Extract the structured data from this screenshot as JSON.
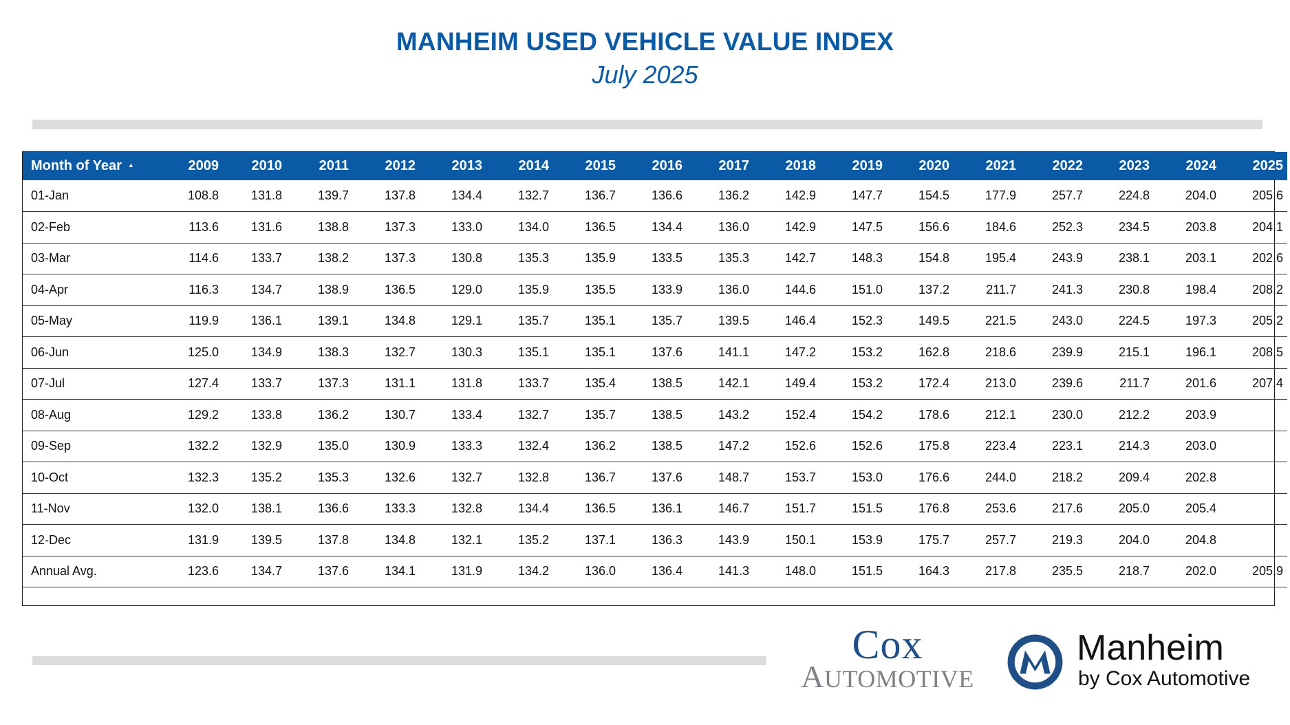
{
  "header": {
    "title": "MANHEIM USED VEHICLE VALUE INDEX",
    "subtitle": "July 2025"
  },
  "table": {
    "month_header": "Month of Year",
    "sort_icon": "sort-ascending-icon",
    "years": [
      "2009",
      "2010",
      "2011",
      "2012",
      "2013",
      "2014",
      "2015",
      "2016",
      "2017",
      "2018",
      "2019",
      "2020",
      "2021",
      "2022",
      "2023",
      "2024",
      "2025"
    ],
    "rows": [
      {
        "label": "01-Jan",
        "values": [
          "108.8",
          "131.8",
          "139.7",
          "137.8",
          "134.4",
          "132.7",
          "136.7",
          "136.6",
          "136.2",
          "142.9",
          "147.7",
          "154.5",
          "177.9",
          "257.7",
          "224.8",
          "204.0",
          "205.6"
        ]
      },
      {
        "label": "02-Feb",
        "values": [
          "113.6",
          "131.6",
          "138.8",
          "137.3",
          "133.0",
          "134.0",
          "136.5",
          "134.4",
          "136.0",
          "142.9",
          "147.5",
          "156.6",
          "184.6",
          "252.3",
          "234.5",
          "203.8",
          "204.1"
        ]
      },
      {
        "label": "03-Mar",
        "values": [
          "114.6",
          "133.7",
          "138.2",
          "137.3",
          "130.8",
          "135.3",
          "135.9",
          "133.5",
          "135.3",
          "142.7",
          "148.3",
          "154.8",
          "195.4",
          "243.9",
          "238.1",
          "203.1",
          "202.6"
        ]
      },
      {
        "label": "04-Apr",
        "values": [
          "116.3",
          "134.7",
          "138.9",
          "136.5",
          "129.0",
          "135.9",
          "135.5",
          "133.9",
          "136.0",
          "144.6",
          "151.0",
          "137.2",
          "211.7",
          "241.3",
          "230.8",
          "198.4",
          "208.2"
        ]
      },
      {
        "label": "05-May",
        "values": [
          "119.9",
          "136.1",
          "139.1",
          "134.8",
          "129.1",
          "135.7",
          "135.1",
          "135.7",
          "139.5",
          "146.4",
          "152.3",
          "149.5",
          "221.5",
          "243.0",
          "224.5",
          "197.3",
          "205.2"
        ]
      },
      {
        "label": "06-Jun",
        "values": [
          "125.0",
          "134.9",
          "138.3",
          "132.7",
          "130.3",
          "135.1",
          "135.1",
          "137.6",
          "141.1",
          "147.2",
          "153.2",
          "162.8",
          "218.6",
          "239.9",
          "215.1",
          "196.1",
          "208.5"
        ]
      },
      {
        "label": "07-Jul",
        "values": [
          "127.4",
          "133.7",
          "137.3",
          "131.1",
          "131.8",
          "133.7",
          "135.4",
          "138.5",
          "142.1",
          "149.4",
          "153.2",
          "172.4",
          "213.0",
          "239.6",
          "211.7",
          "201.6",
          "207.4"
        ]
      },
      {
        "label": "08-Aug",
        "values": [
          "129.2",
          "133.8",
          "136.2",
          "130.7",
          "133.4",
          "132.7",
          "135.7",
          "138.5",
          "143.2",
          "152.4",
          "154.2",
          "178.6",
          "212.1",
          "230.0",
          "212.2",
          "203.9",
          ""
        ]
      },
      {
        "label": "09-Sep",
        "values": [
          "132.2",
          "132.9",
          "135.0",
          "130.9",
          "133.3",
          "132.4",
          "136.2",
          "138.5",
          "147.2",
          "152.6",
          "152.6",
          "175.8",
          "223.4",
          "223.1",
          "214.3",
          "203.0",
          ""
        ]
      },
      {
        "label": "10-Oct",
        "values": [
          "132.3",
          "135.2",
          "135.3",
          "132.6",
          "132.7",
          "132.8",
          "136.7",
          "137.6",
          "148.7",
          "153.7",
          "153.0",
          "176.6",
          "244.0",
          "218.2",
          "209.4",
          "202.8",
          ""
        ]
      },
      {
        "label": "11-Nov",
        "values": [
          "132.0",
          "138.1",
          "136.6",
          "133.3",
          "132.8",
          "134.4",
          "136.5",
          "136.1",
          "146.7",
          "151.7",
          "151.5",
          "176.8",
          "253.6",
          "217.6",
          "205.0",
          "205.4",
          ""
        ]
      },
      {
        "label": "12-Dec",
        "values": [
          "131.9",
          "139.5",
          "137.8",
          "134.8",
          "132.1",
          "135.2",
          "137.1",
          "136.3",
          "143.9",
          "150.1",
          "153.9",
          "175.7",
          "257.7",
          "219.3",
          "204.0",
          "204.8",
          ""
        ]
      },
      {
        "label": "Annual Avg.",
        "values": [
          "123.6",
          "134.7",
          "137.6",
          "134.1",
          "131.9",
          "134.2",
          "136.0",
          "136.4",
          "141.3",
          "148.0",
          "151.5",
          "164.3",
          "217.8",
          "235.5",
          "218.7",
          "202.0",
          "205.9"
        ]
      }
    ]
  },
  "chart_data": {
    "type": "table",
    "title": "MANHEIM USED VEHICLE VALUE INDEX",
    "subtitle": "July 2025",
    "columns": [
      "Month of Year",
      "2009",
      "2010",
      "2011",
      "2012",
      "2013",
      "2014",
      "2015",
      "2016",
      "2017",
      "2018",
      "2019",
      "2020",
      "2021",
      "2022",
      "2023",
      "2024",
      "2025"
    ],
    "rows": [
      [
        "01-Jan",
        108.8,
        131.8,
        139.7,
        137.8,
        134.4,
        132.7,
        136.7,
        136.6,
        136.2,
        142.9,
        147.7,
        154.5,
        177.9,
        257.7,
        224.8,
        204.0,
        205.6
      ],
      [
        "02-Feb",
        113.6,
        131.6,
        138.8,
        137.3,
        133.0,
        134.0,
        136.5,
        134.4,
        136.0,
        142.9,
        147.5,
        156.6,
        184.6,
        252.3,
        234.5,
        203.8,
        204.1
      ],
      [
        "03-Mar",
        114.6,
        133.7,
        138.2,
        137.3,
        130.8,
        135.3,
        135.9,
        133.5,
        135.3,
        142.7,
        148.3,
        154.8,
        195.4,
        243.9,
        238.1,
        203.1,
        202.6
      ],
      [
        "04-Apr",
        116.3,
        134.7,
        138.9,
        136.5,
        129.0,
        135.9,
        135.5,
        133.9,
        136.0,
        144.6,
        151.0,
        137.2,
        211.7,
        241.3,
        230.8,
        198.4,
        208.2
      ],
      [
        "05-May",
        119.9,
        136.1,
        139.1,
        134.8,
        129.1,
        135.7,
        135.1,
        135.7,
        139.5,
        146.4,
        152.3,
        149.5,
        221.5,
        243.0,
        224.5,
        197.3,
        205.2
      ],
      [
        "06-Jun",
        125.0,
        134.9,
        138.3,
        132.7,
        130.3,
        135.1,
        135.1,
        137.6,
        141.1,
        147.2,
        153.2,
        162.8,
        218.6,
        239.9,
        215.1,
        196.1,
        208.5
      ],
      [
        "07-Jul",
        127.4,
        133.7,
        137.3,
        131.1,
        131.8,
        133.7,
        135.4,
        138.5,
        142.1,
        149.4,
        153.2,
        172.4,
        213.0,
        239.6,
        211.7,
        201.6,
        207.4
      ],
      [
        "08-Aug",
        129.2,
        133.8,
        136.2,
        130.7,
        133.4,
        132.7,
        135.7,
        138.5,
        143.2,
        152.4,
        154.2,
        178.6,
        212.1,
        230.0,
        212.2,
        203.9,
        null
      ],
      [
        "09-Sep",
        132.2,
        132.9,
        135.0,
        130.9,
        133.3,
        132.4,
        136.2,
        138.5,
        147.2,
        152.6,
        152.6,
        175.8,
        223.4,
        223.1,
        214.3,
        203.0,
        null
      ],
      [
        "10-Oct",
        132.3,
        135.2,
        135.3,
        132.6,
        132.7,
        132.8,
        136.7,
        137.6,
        148.7,
        153.7,
        153.0,
        176.6,
        244.0,
        218.2,
        209.4,
        202.8,
        null
      ],
      [
        "11-Nov",
        132.0,
        138.1,
        136.6,
        133.3,
        132.8,
        134.4,
        136.5,
        136.1,
        146.7,
        151.7,
        151.5,
        176.8,
        253.6,
        217.6,
        205.0,
        205.4,
        null
      ],
      [
        "12-Dec",
        131.9,
        139.5,
        137.8,
        134.8,
        132.1,
        135.2,
        137.1,
        136.3,
        143.9,
        150.1,
        153.9,
        175.7,
        257.7,
        219.3,
        204.0,
        204.8,
        null
      ],
      [
        "Annual Avg.",
        123.6,
        134.7,
        137.6,
        134.1,
        131.9,
        134.2,
        136.0,
        136.4,
        141.3,
        148.0,
        151.5,
        164.3,
        217.8,
        235.5,
        218.7,
        202.0,
        205.9
      ]
    ]
  },
  "logos": {
    "cox_top": "Cox",
    "cox_bottom": "Automotive",
    "manheim_name": "Manheim",
    "manheim_sub": "by Cox Automotive",
    "manheim_icon": "manheim-m-logo-icon"
  },
  "colors": {
    "brand_blue": "#0a5aa6",
    "header_text": "#ffffff",
    "divider_gray": "#dcdcdc"
  }
}
